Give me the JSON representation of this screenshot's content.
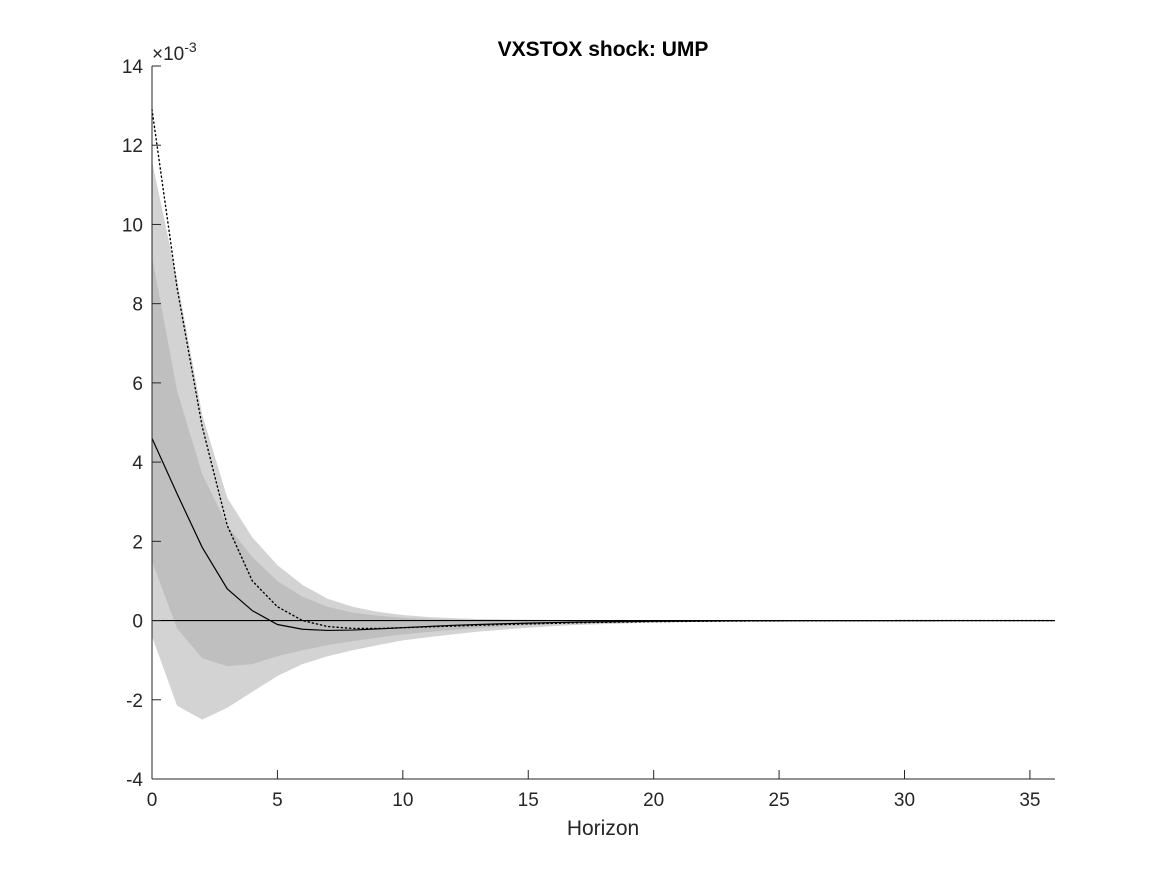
{
  "chart_data": {
    "type": "line",
    "title": "VXSTOX shock: UMP",
    "xlabel": "Horizon",
    "ylabel": "",
    "y_exponent_label": {
      "base": "×10",
      "power": "-3"
    },
    "xlim": [
      0,
      36
    ],
    "ylim": [
      -4,
      14
    ],
    "xticks": [
      0,
      5,
      10,
      15,
      20,
      25,
      30,
      35
    ],
    "yticks": [
      -4,
      -2,
      0,
      2,
      4,
      6,
      8,
      10,
      12,
      14
    ],
    "y_unit_scale": 0.001,
    "grid": false,
    "legend": "none",
    "x": [
      0,
      1,
      2,
      3,
      4,
      5,
      6,
      7,
      8,
      9,
      10,
      11,
      12,
      13,
      14,
      15,
      16,
      17,
      18,
      19,
      20,
      21,
      22,
      23,
      24,
      25,
      26,
      27,
      28,
      29,
      30,
      31,
      32,
      33,
      34,
      35,
      36
    ],
    "bands": [
      {
        "role": "outer",
        "color": "#d3d3d3",
        "lower": [
          -0.4,
          -2.15,
          -2.5,
          -2.2,
          -1.8,
          -1.4,
          -1.1,
          -0.9,
          -0.75,
          -0.62,
          -0.5,
          -0.42,
          -0.35,
          -0.28,
          -0.23,
          -0.18,
          -0.14,
          -0.11,
          -0.09,
          -0.07,
          -0.05,
          -0.04,
          -0.03,
          -0.025,
          -0.02,
          -0.015,
          -0.01,
          -0.008,
          -0.006,
          -0.004,
          -0.003,
          -0.002,
          -0.0015,
          -0.001,
          -0.0008,
          -0.0005,
          -0.0003
        ],
        "upper": [
          11.6,
          8.6,
          5.2,
          3.1,
          2.1,
          1.4,
          0.9,
          0.55,
          0.35,
          0.22,
          0.14,
          0.09,
          0.06,
          0.04,
          0.03,
          0.02,
          0.015,
          0.01,
          0.008,
          0.006,
          0.004,
          0.003,
          0.002,
          0.0015,
          0.001,
          0.0008,
          0.0006,
          0.0004,
          0.0003,
          0.0002,
          0.0001,
          0.0001,
          0.0001,
          0.0001,
          0.0001,
          0.0001,
          0.0001
        ]
      },
      {
        "role": "inner",
        "color": "#bfbfbf",
        "lower": [
          1.5,
          -0.2,
          -0.95,
          -1.15,
          -1.1,
          -0.9,
          -0.75,
          -0.62,
          -0.52,
          -0.43,
          -0.35,
          -0.29,
          -0.24,
          -0.19,
          -0.15,
          -0.12,
          -0.09,
          -0.07,
          -0.055,
          -0.045,
          -0.035,
          -0.028,
          -0.022,
          -0.017,
          -0.013,
          -0.01,
          -0.008,
          -0.006,
          -0.004,
          -0.003,
          -0.002,
          -0.0015,
          -0.001,
          -0.0008,
          -0.0005,
          -0.0003,
          -0.0002
        ],
        "upper": [
          9.2,
          5.8,
          3.7,
          2.4,
          1.6,
          1.0,
          0.6,
          0.35,
          0.2,
          0.12,
          0.07,
          0.04,
          0.025,
          0.015,
          0.01,
          0.006,
          0.004,
          0.003,
          0.002,
          0.0015,
          0.001,
          0.0007,
          0.0005,
          0.0003,
          0.0002,
          0.0001,
          0.0001,
          0.0001,
          0.0001,
          0.0001,
          0.0001,
          0.0001,
          0.0001,
          0.0001,
          0.0001,
          0.0001,
          0.0001
        ]
      }
    ],
    "series": [
      {
        "style": "solid",
        "color": "#000000",
        "values": [
          4.6,
          3.2,
          1.85,
          0.8,
          0.25,
          -0.1,
          -0.22,
          -0.25,
          -0.24,
          -0.21,
          -0.18,
          -0.15,
          -0.12,
          -0.1,
          -0.08,
          -0.065,
          -0.05,
          -0.04,
          -0.03,
          -0.024,
          -0.018,
          -0.014,
          -0.011,
          -0.008,
          -0.006,
          -0.005,
          -0.004,
          -0.003,
          -0.002,
          -0.0015,
          -0.001,
          -0.0008,
          -0.0006,
          -0.0004,
          -0.0003,
          -0.0002,
          -0.0001
        ]
      },
      {
        "style": "dotted",
        "color": "#000000",
        "values": [
          12.9,
          8.4,
          4.9,
          2.4,
          1.0,
          0.35,
          0.0,
          -0.15,
          -0.2,
          -0.2,
          -0.18,
          -0.16,
          -0.14,
          -0.12,
          -0.1,
          -0.085,
          -0.07,
          -0.055,
          -0.045,
          -0.036,
          -0.028,
          -0.022,
          -0.017,
          -0.013,
          -0.01,
          -0.008,
          -0.006,
          -0.0045,
          -0.0035,
          -0.0025,
          -0.002,
          -0.0015,
          -0.001,
          -0.0008,
          -0.0006,
          -0.0004,
          -0.0003
        ]
      }
    ],
    "zero_line": {
      "y": 0,
      "color": "#000000"
    }
  }
}
